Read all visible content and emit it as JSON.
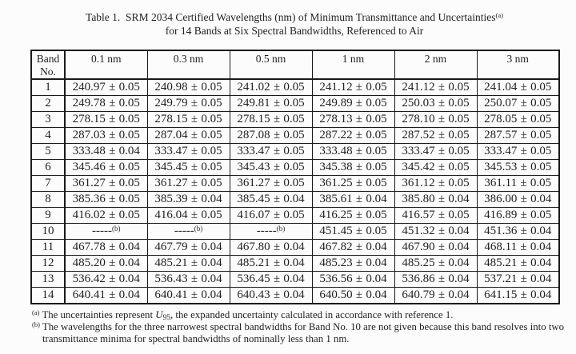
{
  "title": {
    "line1": "Table 1.  SRM 2034 Certified Wavelengths (nm) of Minimum Transmittance and Uncertainties",
    "line1_sup": "(a)",
    "line2": "for 14 Bands at Six Spectral Bandwidths, Referenced to Air"
  },
  "table": {
    "band_header_line1": "Band",
    "band_header_line2": "No.",
    "columns": [
      "0.1 nm",
      "0.3 nm",
      "0.5 nm",
      "1 nm",
      "2 nm",
      "3 nm"
    ],
    "rows": [
      {
        "band": "1",
        "cells": [
          "240.97 ± 0.05",
          "240.98 ± 0.05",
          "241.02 ± 0.05",
          "241.12 ± 0.05",
          "241.12 ± 0.05",
          "241.04 ± 0.05"
        ]
      },
      {
        "band": "2",
        "cells": [
          "249.78 ± 0.05",
          "249.79 ± 0.05",
          "249.81 ± 0.05",
          "249.89 ± 0.05",
          "250.03 ± 0.05",
          "250.07 ± 0.05"
        ]
      },
      {
        "band": "3",
        "cells": [
          "278.15 ± 0.05",
          "278.15 ± 0.05",
          "278.15 ± 0.05",
          "278.13 ± 0.05",
          "278.10 ± 0.05",
          "278.05 ± 0.05"
        ]
      },
      {
        "band": "4",
        "cells": [
          "287.03 ± 0.05",
          "287.04 ± 0.05",
          "287.08 ± 0.05",
          "287.22 ± 0.05",
          "287.52 ± 0.05",
          "287.57 ± 0.05"
        ]
      },
      {
        "band": "5",
        "cells": [
          "333.48 ± 0.04",
          "333.47 ± 0.05",
          "333.47 ± 0.05",
          "333.48 ± 0.05",
          "333.47 ± 0.05",
          "333.47 ± 0.05"
        ]
      },
      {
        "band": "6",
        "cells": [
          "345.46 ± 0.05",
          "345.45 ± 0.05",
          "345.43 ± 0.05",
          "345.38 ± 0.05",
          "345.42 ± 0.05",
          "345.53 ± 0.05"
        ]
      },
      {
        "band": "7",
        "cells": [
          "361.27 ± 0.05",
          "361.27 ± 0.05",
          "361.27 ± 0.05",
          "361.25 ± 0.05",
          "361.12 ± 0.05",
          "361.11 ± 0.05"
        ]
      },
      {
        "band": "8",
        "cells": [
          "385.36 ± 0.05",
          "385.39 ± 0.04",
          "385.45 ± 0.04",
          "385.61 ± 0.04",
          "385.80 ± 0.04",
          "386.00 ± 0.04"
        ]
      },
      {
        "band": "9",
        "cells": [
          "416.02 ± 0.05",
          "416.04 ± 0.05",
          "416.07 ± 0.05",
          "416.25 ± 0.05",
          "416.57 ± 0.05",
          "416.89 ± 0.05"
        ]
      },
      {
        "band": "10",
        "cells": [
          "-----(b)",
          "-----(b)",
          "-----(b)",
          "451.45 ± 0.05",
          "451.32 ± 0.04",
          "451.36 ± 0.04"
        ]
      },
      {
        "band": "11",
        "cells": [
          "467.78 ± 0.04",
          "467.79 ± 0.04",
          "467.80 ± 0.04",
          "467.82 ± 0.04",
          "467.90 ± 0.04",
          "468.11 ± 0.04"
        ]
      },
      {
        "band": "12",
        "cells": [
          "485.20 ± 0.04",
          "485.21 ± 0.04",
          "485.21 ± 0.04",
          "485.23 ± 0.04",
          "485.25 ± 0.04",
          "485.21 ± 0.04"
        ]
      },
      {
        "band": "13",
        "cells": [
          "536.42 ± 0.04",
          "536.43 ± 0.04",
          "536.45 ± 0.04",
          "536.56 ± 0.04",
          "536.86 ± 0.04",
          "537.21 ± 0.04"
        ]
      },
      {
        "band": "14",
        "cells": [
          "640.41 ± 0.04",
          "640.41 ± 0.04",
          "640.43 ± 0.04",
          "640.50 ± 0.04",
          "640.79 ± 0.04",
          "641.15 ± 0.04"
        ]
      }
    ]
  },
  "footnotes": {
    "a": {
      "marker": "(a)",
      "before_u": "The uncertainties represent ",
      "symbol": "U",
      "subscript": "95",
      "after_u": ", the expanded uncertainty calculated in accordance with reference 1."
    },
    "b": {
      "marker": "(b)",
      "text": "The wavelengths for the three narrowest spectral bandwidths for Band No. 10 are not given because this band resolves into two transmittance minima for spectral bandwidths of nominally less than 1 nm."
    }
  }
}
